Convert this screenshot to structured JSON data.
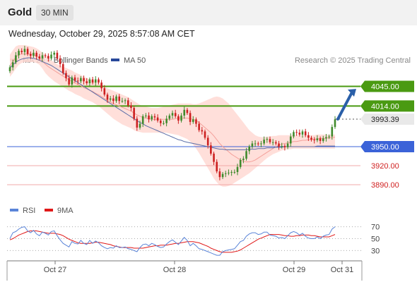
{
  "header": {
    "symbol": "Gold",
    "timeframe": "30 MIN"
  },
  "timestamp": "Wednesday, October 29, 2025 8:57:08 AM CET",
  "legend": {
    "items": [
      {
        "label": "MA 20 + Bollinger Bands",
        "color": "#f4a09a"
      },
      {
        "label": "MA 50",
        "color": "#27489a"
      }
    ],
    "credit": "Research © 2025 Trading Central"
  },
  "rsi_legend": {
    "items": [
      {
        "label": "RSI",
        "color": "#5a84d8"
      },
      {
        "label": "9MA",
        "color": "#e01818"
      }
    ]
  },
  "colors": {
    "up": "#3f8a2c",
    "down": "#cc2020",
    "support": "#f0a8a8",
    "pivot": "#3b63d8",
    "resistance": "#4a9a12",
    "band_fill": "#ffd9d4"
  },
  "chart_data": [
    {
      "type": "candlestick",
      "x_tick_labels": [
        "Oct 27",
        "Oct 28",
        "Oct 29",
        "Oct 31"
      ],
      "ylim": [
        3870,
        4070
      ],
      "levels": [
        {
          "label": "4045.00",
          "value": 4045,
          "kind": "resistance"
        },
        {
          "label": "4014.00",
          "value": 4014,
          "kind": "resistance"
        },
        {
          "label": "3950.00",
          "value": 3950,
          "kind": "pivot"
        },
        {
          "label": "3920.00",
          "value": 3920,
          "kind": "support"
        },
        {
          "label": "3890.00",
          "value": 3890,
          "kind": "support"
        }
      ],
      "last_price": {
        "label": "3993.39",
        "value": 3993.39
      },
      "close": [
        4075,
        4083,
        4094,
        4101,
        4099,
        4104,
        4096,
        4093,
        4098,
        4092,
        4089,
        4094,
        4093,
        4089,
        4095,
        4098,
        4089,
        4080,
        4066,
        4058,
        4048,
        4059,
        4054,
        4053,
        4058,
        4053,
        4050,
        4056,
        4051,
        4056,
        4051,
        4042,
        4032,
        4024,
        4026,
        4022,
        4029,
        4022,
        4022,
        4023,
        4015,
        4011,
        3994,
        3980,
        3986,
        3998,
        3999,
        3993,
        3998,
        3996,
        3991,
        3987,
        3987,
        3994,
        3999,
        4003,
        3998,
        3991,
        3999,
        4008,
        4003,
        3989,
        3993,
        3986,
        3976,
        3974,
        3964,
        3952,
        3939,
        3926,
        3911,
        3902,
        3907,
        3908,
        3909,
        3910,
        3910,
        3918,
        3929,
        3931,
        3943,
        3950,
        3955,
        3955,
        3954,
        3955,
        3961,
        3962,
        3957,
        3957,
        3955,
        3950,
        3951,
        3949,
        3955,
        3966,
        3973,
        3972,
        3969,
        3974,
        3968,
        3964,
        3961,
        3960,
        3963,
        3959,
        3963,
        3965,
        3966,
        3981,
        3993
      ],
      "ma20": [
        4078,
        4084,
        4091,
        4095,
        4096,
        4096,
        4096,
        4096,
        4095,
        4093,
        4090,
        4085,
        4080,
        4076,
        4073,
        4070,
        4067,
        4064,
        4061,
        4058,
        4055,
        4053,
        4050,
        4048,
        4046,
        4043,
        4041,
        4039,
        4037,
        4034,
        4032,
        4029,
        4026,
        4023,
        4020,
        4018,
        4016,
        4014,
        4012,
        4010,
        4008,
        4006,
        4003,
        4000,
        3998,
        3996,
        3995,
        3994,
        3993,
        3993,
        3993,
        3993,
        3993,
        3993,
        3993,
        3993,
        3994,
        3995,
        3995,
        3995,
        3995,
        3994,
        3993,
        3991,
        3988,
        3984,
        3980,
        3976,
        3972,
        3967,
        3961,
        3955,
        3950,
        3946,
        3942,
        3938,
        3935,
        3932,
        3929,
        3927,
        3926,
        3926,
        3927,
        3929,
        3932,
        3935,
        3938,
        3941,
        3944,
        3947,
        3950,
        3952,
        3954,
        3955,
        3956,
        3957,
        3958,
        3958,
        3959,
        3960,
        3960,
        3961,
        3961,
        3962,
        3962,
        3963,
        3963,
        3963,
        3964,
        3964,
        3965
      ],
      "ma50": [
        4074,
        4079,
        4083,
        4086,
        4088,
        4089,
        4090,
        4090,
        4089,
        4088,
        4086,
        4084,
        4082,
        4080,
        4078,
        4075,
        4072,
        4069,
        4066,
        4063,
        4060,
        4057,
        4054,
        4051,
        4048,
        4045,
        4042,
        4039,
        4036,
        4033,
        4030,
        4027,
        4024,
        4021,
        4018,
        4015,
        4012,
        4009,
        4006,
        4003,
        4000,
        3997,
        3994,
        3991,
        3988,
        3986,
        3983,
        3981,
        3979,
        3977,
        3975,
        3973,
        3971,
        3969,
        3967,
        3965,
        3963,
        3961,
        3960,
        3958,
        3957,
        3956,
        3955,
        3954,
        3953,
        3952,
        3951,
        3950,
        3949,
        3948,
        3947,
        3946,
        3946,
        3945,
        3945,
        3945,
        3945,
        3945,
        3945,
        3945,
        3945,
        3946,
        3946,
        3946,
        3947,
        3947,
        3947,
        3948,
        3948,
        3948,
        3949,
        3949,
        3949,
        3950,
        3950,
        3950,
        3950,
        3950,
        3950,
        3950,
        3950,
        3950,
        3950,
        3950,
        3951,
        3951,
        3951,
        3951,
        3951,
        3951,
        3951
      ],
      "bb_upper": [
        4095,
        4102,
        4108,
        4110,
        4110,
        4110,
        4109,
        4108,
        4107,
        4105,
        4102,
        4098,
        4094,
        4090,
        4086,
        4083,
        4080,
        4078,
        4076,
        4074,
        4072,
        4070,
        4067,
        4065,
        4063,
        4060,
        4058,
        4056,
        4054,
        4052,
        4050,
        4048,
        4045,
        4042,
        4040,
        4038,
        4036,
        4034,
        4032,
        4030,
        4028,
        4025,
        4022,
        4019,
        4016,
        4014,
        4013,
        4012,
        4011,
        4011,
        4011,
        4012,
        4013,
        4014,
        4015,
        4016,
        4017,
        4018,
        4018,
        4018,
        4018,
        4018,
        4017,
        4017,
        4018,
        4020,
        4022,
        4024,
        4026,
        4028,
        4029,
        4028,
        4026,
        4022,
        4018,
        4012,
        4006,
        4000,
        3994,
        3988,
        3982,
        3976,
        3972,
        3968,
        3966,
        3965,
        3965,
        3966,
        3966,
        3967,
        3967,
        3968,
        3968,
        3968,
        3968,
        3968,
        3968,
        3968,
        3968,
        3968,
        3968,
        3968,
        3968,
        3968,
        3969,
        3969,
        3969,
        3969,
        3969,
        3969,
        3969
      ],
      "bb_lower": [
        4060,
        4066,
        4073,
        4079,
        4082,
        4083,
        4083,
        4083,
        4083,
        4082,
        4079,
        4073,
        4066,
        4061,
        4057,
        4053,
        4050,
        4047,
        4044,
        4041,
        4038,
        4036,
        4033,
        4031,
        4029,
        4026,
        4024,
        4022,
        4020,
        4017,
        4014,
        4010,
        4006,
        4002,
        3998,
        3994,
        3991,
        3988,
        3985,
        3983,
        3981,
        3979,
        3976,
        3974,
        3973,
        3972,
        3972,
        3972,
        3972,
        3972,
        3972,
        3972,
        3972,
        3972,
        3971,
        3970,
        3969,
        3968,
        3966,
        3964,
        3962,
        3958,
        3953,
        3947,
        3940,
        3932,
        3924,
        3916,
        3908,
        3900,
        3894,
        3889,
        3887,
        3887,
        3888,
        3890,
        3893,
        3896,
        3899,
        3902,
        3905,
        3908,
        3912,
        3916,
        3920,
        3924,
        3928,
        3932,
        3935,
        3938,
        3940,
        3942,
        3944,
        3945,
        3946,
        3946,
        3947,
        3947,
        3947,
        3947,
        3947,
        3947,
        3947,
        3947,
        3947,
        3947,
        3947,
        3947,
        3947,
        3947,
        3947
      ],
      "forecast_arrow": {
        "from": 3993.39,
        "to": 4041
      }
    },
    {
      "type": "line",
      "name": "RSI",
      "yticks": [
        30,
        50,
        70
      ],
      "ylim": [
        15,
        85
      ],
      "series": [
        {
          "name": "RSI",
          "values": [
            50,
            60,
            62,
            66,
            69,
            70,
            63,
            60,
            64,
            58,
            55,
            61,
            59,
            56,
            62,
            63,
            55,
            48,
            42,
            39,
            36,
            45,
            42,
            41,
            47,
            42,
            40,
            47,
            42,
            46,
            43,
            38,
            35,
            33,
            35,
            34,
            38,
            35,
            35,
            36,
            33,
            32,
            30,
            28,
            35,
            40,
            41,
            38,
            42,
            40,
            37,
            35,
            36,
            41,
            45,
            48,
            44,
            40,
            46,
            52,
            47,
            38,
            42,
            38,
            33,
            32,
            30,
            28,
            26,
            24,
            22,
            22,
            28,
            30,
            31,
            32,
            33,
            39,
            45,
            47,
            54,
            58,
            60,
            60,
            57,
            58,
            61,
            61,
            56,
            55,
            54,
            51,
            52,
            50,
            55,
            60,
            62,
            60,
            56,
            59,
            54,
            51,
            50,
            50,
            53,
            50,
            54,
            56,
            57,
            66,
            70
          ]
        },
        {
          "name": "9MA",
          "values": [
            48,
            50,
            53,
            56,
            58,
            60,
            62,
            63,
            63,
            63,
            62,
            61,
            60,
            59,
            59,
            59,
            58,
            57,
            55,
            52,
            49,
            47,
            45,
            43,
            42,
            42,
            42,
            42,
            43,
            44,
            44,
            43,
            42,
            41,
            40,
            38,
            37,
            36,
            35,
            35,
            35,
            35,
            34,
            34,
            34,
            34,
            35,
            36,
            37,
            38,
            38,
            39,
            39,
            39,
            40,
            41,
            42,
            42,
            43,
            44,
            45,
            45,
            45,
            44,
            43,
            41,
            39,
            37,
            34,
            32,
            30,
            28,
            27,
            27,
            27,
            27,
            28,
            29,
            31,
            34,
            37,
            40,
            43,
            46,
            49,
            51,
            53,
            55,
            57,
            57,
            57,
            57,
            56,
            55,
            55,
            54,
            54,
            55,
            55,
            56,
            56,
            56,
            55,
            55,
            54,
            53,
            53,
            53,
            53,
            55,
            57
          ]
        }
      ]
    }
  ]
}
